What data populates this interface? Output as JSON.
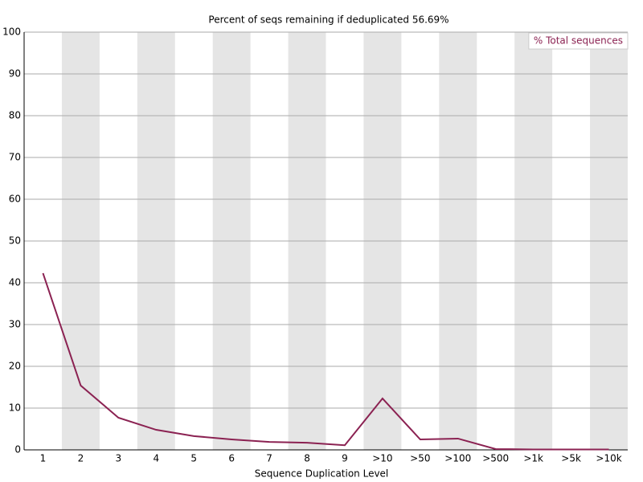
{
  "chart_data": {
    "type": "line",
    "title": "Percent of seqs remaining if deduplicated 56.69%",
    "x_label": "Sequence Duplication Level",
    "categories": [
      "1",
      "2",
      "3",
      "4",
      "5",
      "6",
      "7",
      "8",
      "9",
      ">10",
      ">50",
      ">100",
      ">500",
      ">1k",
      ">5k",
      ">10k"
    ],
    "series": [
      {
        "name": "% Total sequences",
        "color": "#8b2252",
        "values": [
          42.3,
          15.4,
          7.7,
          4.8,
          3.3,
          2.5,
          1.9,
          1.7,
          1.1,
          12.3,
          2.5,
          2.7,
          0.2,
          0.1,
          0.1,
          0.1
        ]
      }
    ],
    "ylim": [
      0,
      100
    ],
    "yticks": [
      0,
      10,
      20,
      30,
      40,
      50,
      60,
      70,
      80,
      90,
      100
    ],
    "grid": true,
    "legend": "top-right"
  }
}
